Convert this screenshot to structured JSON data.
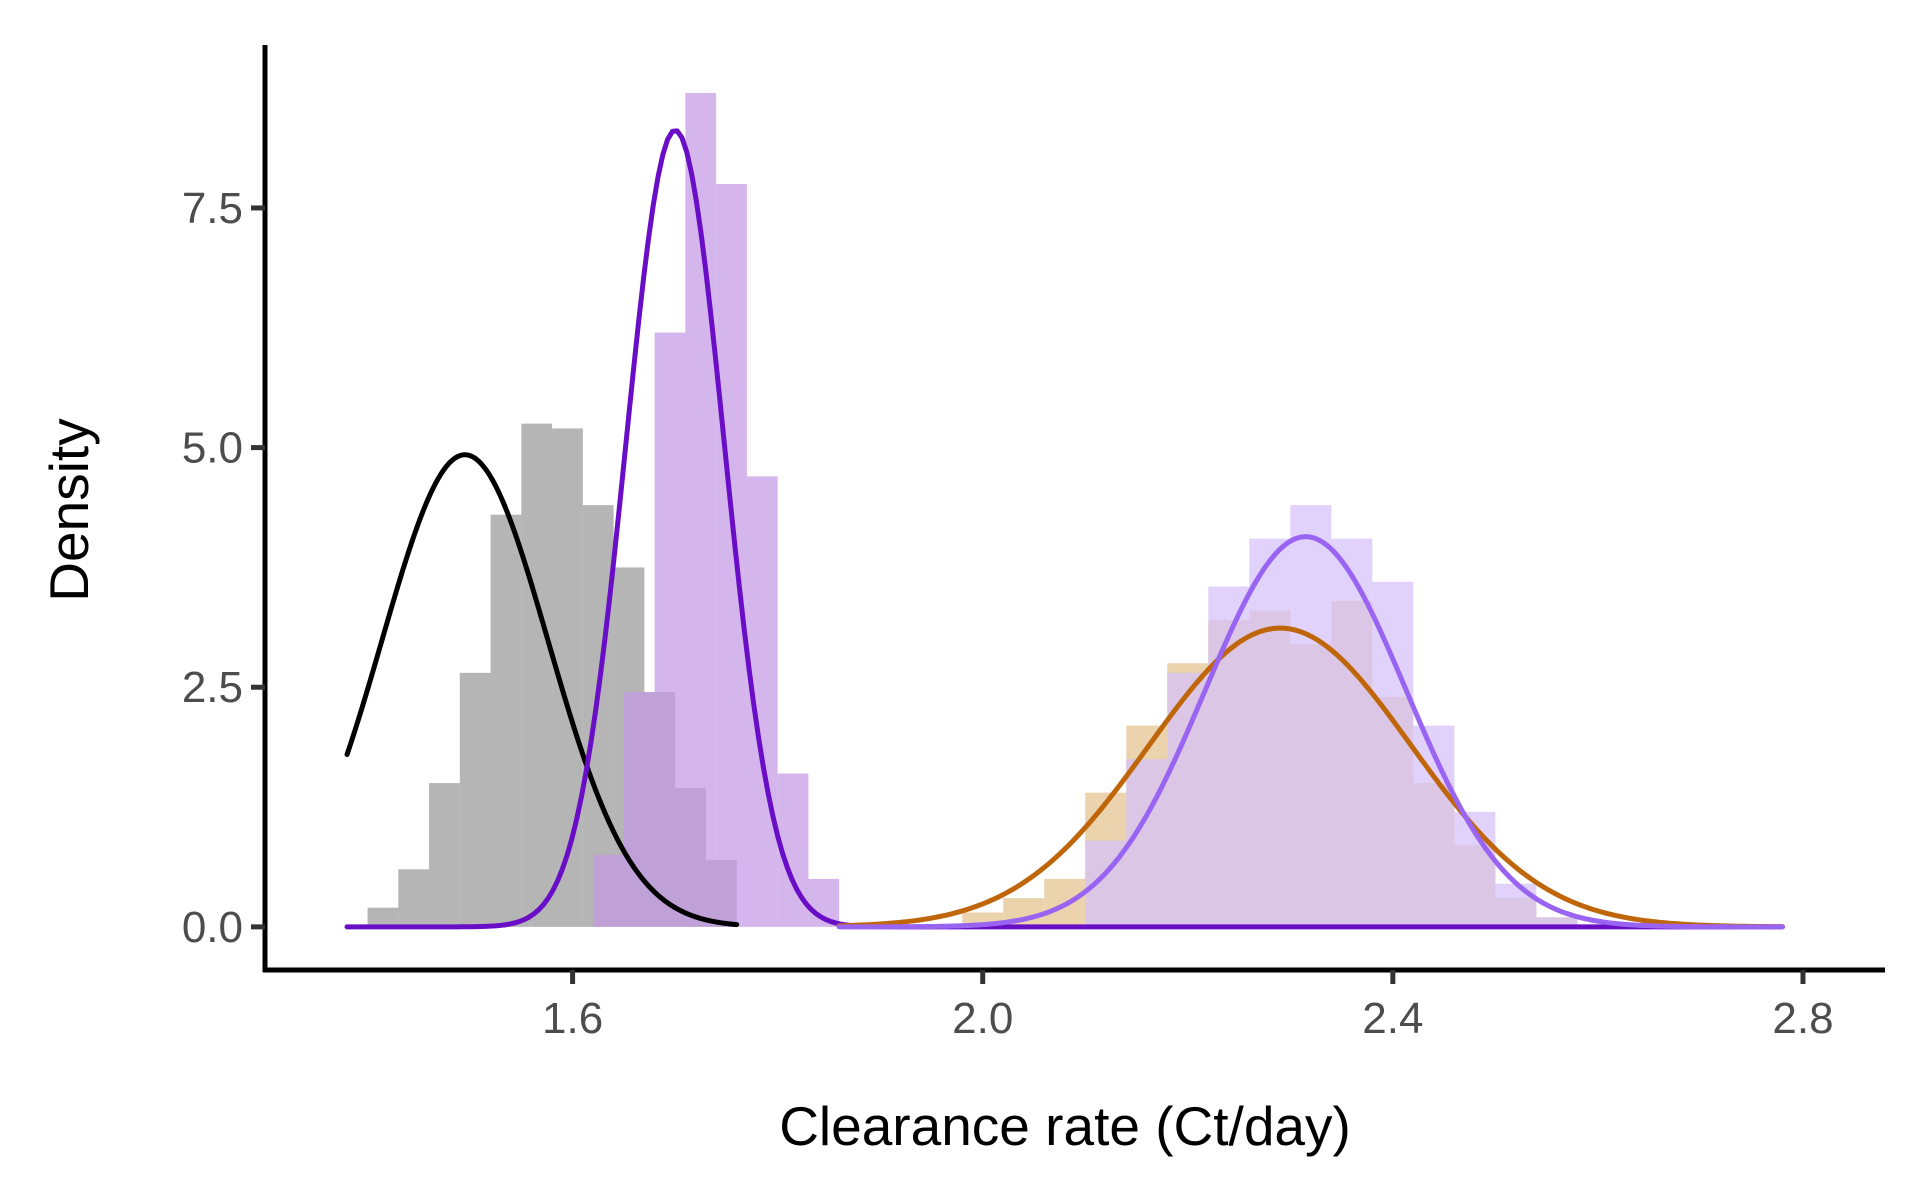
{
  "chart_data": {
    "type": "histogram-density",
    "title": "",
    "xlabel": "Clearance rate (Ct/day)",
    "ylabel": "Density",
    "xlim": [
      1.3,
      2.88
    ],
    "ylim": [
      -0.45,
      9.2
    ],
    "x_ticks": [
      1.6,
      2.0,
      2.4,
      2.8
    ],
    "x_tick_labels": [
      "1.6",
      "2.0",
      "2.4",
      "2.8"
    ],
    "y_ticks": [
      0.0,
      2.5,
      5.0,
      7.5
    ],
    "y_tick_labels": [
      "0.0",
      "2.5",
      "5.0",
      "7.5"
    ],
    "grid": false,
    "legend": "none",
    "series": [
      {
        "color": "#000000",
        "fill": "#999999",
        "curve_mean": 1.495,
        "curve_sd": 0.081,
        "curve_domain": [
          1.38,
          1.76
        ],
        "bins": [
          {
            "x0": 1.4,
            "x1": 1.43,
            "density": 0.2
          },
          {
            "x0": 1.43,
            "x1": 1.46,
            "density": 0.6
          },
          {
            "x0": 1.46,
            "x1": 1.49,
            "density": 1.5
          },
          {
            "x0": 1.49,
            "x1": 1.52,
            "density": 2.65
          },
          {
            "x0": 1.52,
            "x1": 1.55,
            "density": 4.3
          },
          {
            "x0": 1.55,
            "x1": 1.58,
            "density": 5.25
          },
          {
            "x0": 1.58,
            "x1": 1.61,
            "density": 5.2
          },
          {
            "x0": 1.61,
            "x1": 1.64,
            "density": 4.4
          },
          {
            "x0": 1.64,
            "x1": 1.67,
            "density": 3.75
          },
          {
            "x0": 1.67,
            "x1": 1.7,
            "density": 2.45
          },
          {
            "x0": 1.7,
            "x1": 1.73,
            "density": 1.45
          },
          {
            "x0": 1.73,
            "x1": 1.76,
            "density": 0.7
          }
        ]
      },
      {
        "color": "#6a0dc6",
        "fill": "#c49ae6",
        "curve_mean": 1.7,
        "curve_sd": 0.048,
        "curve_domain": [
          1.38,
          2.78
        ],
        "bins": [
          {
            "x0": 1.62,
            "x1": 1.65,
            "density": 0.75
          },
          {
            "x0": 1.65,
            "x1": 1.68,
            "density": 2.45
          },
          {
            "x0": 1.68,
            "x1": 1.71,
            "density": 6.2
          },
          {
            "x0": 1.71,
            "x1": 1.74,
            "density": 8.7
          },
          {
            "x0": 1.74,
            "x1": 1.77,
            "density": 7.75
          },
          {
            "x0": 1.77,
            "x1": 1.8,
            "density": 4.7
          },
          {
            "x0": 1.8,
            "x1": 1.83,
            "density": 1.6
          },
          {
            "x0": 1.83,
            "x1": 1.86,
            "density": 0.5
          }
        ]
      },
      {
        "color": "#c0660a",
        "fill": "#e3c28d",
        "curve_mean": 2.29,
        "curve_sd": 0.128,
        "curve_domain": [
          1.86,
          2.78
        ],
        "bins": [
          {
            "x0": 1.98,
            "x1": 2.02,
            "density": 0.15
          },
          {
            "x0": 2.02,
            "x1": 2.06,
            "density": 0.3
          },
          {
            "x0": 2.06,
            "x1": 2.1,
            "density": 0.5
          },
          {
            "x0": 2.1,
            "x1": 2.14,
            "density": 1.4
          },
          {
            "x0": 2.14,
            "x1": 2.18,
            "density": 2.1
          },
          {
            "x0": 2.18,
            "x1": 2.22,
            "density": 2.75
          },
          {
            "x0": 2.22,
            "x1": 2.26,
            "density": 3.2
          },
          {
            "x0": 2.26,
            "x1": 2.3,
            "density": 3.3
          },
          {
            "x0": 2.3,
            "x1": 2.34,
            "density": 2.95
          },
          {
            "x0": 2.34,
            "x1": 2.38,
            "density": 3.4
          },
          {
            "x0": 2.38,
            "x1": 2.42,
            "density": 2.4
          },
          {
            "x0": 2.42,
            "x1": 2.46,
            "density": 1.5
          },
          {
            "x0": 2.46,
            "x1": 2.5,
            "density": 0.85
          },
          {
            "x0": 2.5,
            "x1": 2.54,
            "density": 0.3
          },
          {
            "x0": 2.54,
            "x1": 2.58,
            "density": 0.1
          }
        ]
      },
      {
        "color": "#9a64f2",
        "fill": "#d6c0fb",
        "curve_mean": 2.315,
        "curve_sd": 0.098,
        "curve_domain": [
          1.86,
          2.78
        ],
        "bins": [
          {
            "x0": 2.1,
            "x1": 2.14,
            "density": 0.9
          },
          {
            "x0": 2.14,
            "x1": 2.18,
            "density": 1.75
          },
          {
            "x0": 2.18,
            "x1": 2.22,
            "density": 2.65
          },
          {
            "x0": 2.22,
            "x1": 2.26,
            "density": 3.55
          },
          {
            "x0": 2.26,
            "x1": 2.3,
            "density": 4.05
          },
          {
            "x0": 2.3,
            "x1": 2.34,
            "density": 4.4
          },
          {
            "x0": 2.34,
            "x1": 2.38,
            "density": 4.05
          },
          {
            "x0": 2.38,
            "x1": 2.42,
            "density": 3.6
          },
          {
            "x0": 2.42,
            "x1": 2.46,
            "density": 2.1
          },
          {
            "x0": 2.46,
            "x1": 2.5,
            "density": 1.2
          },
          {
            "x0": 2.5,
            "x1": 2.54,
            "density": 0.45
          },
          {
            "x0": 2.54,
            "x1": 2.58,
            "density": 0.1
          }
        ]
      }
    ]
  }
}
